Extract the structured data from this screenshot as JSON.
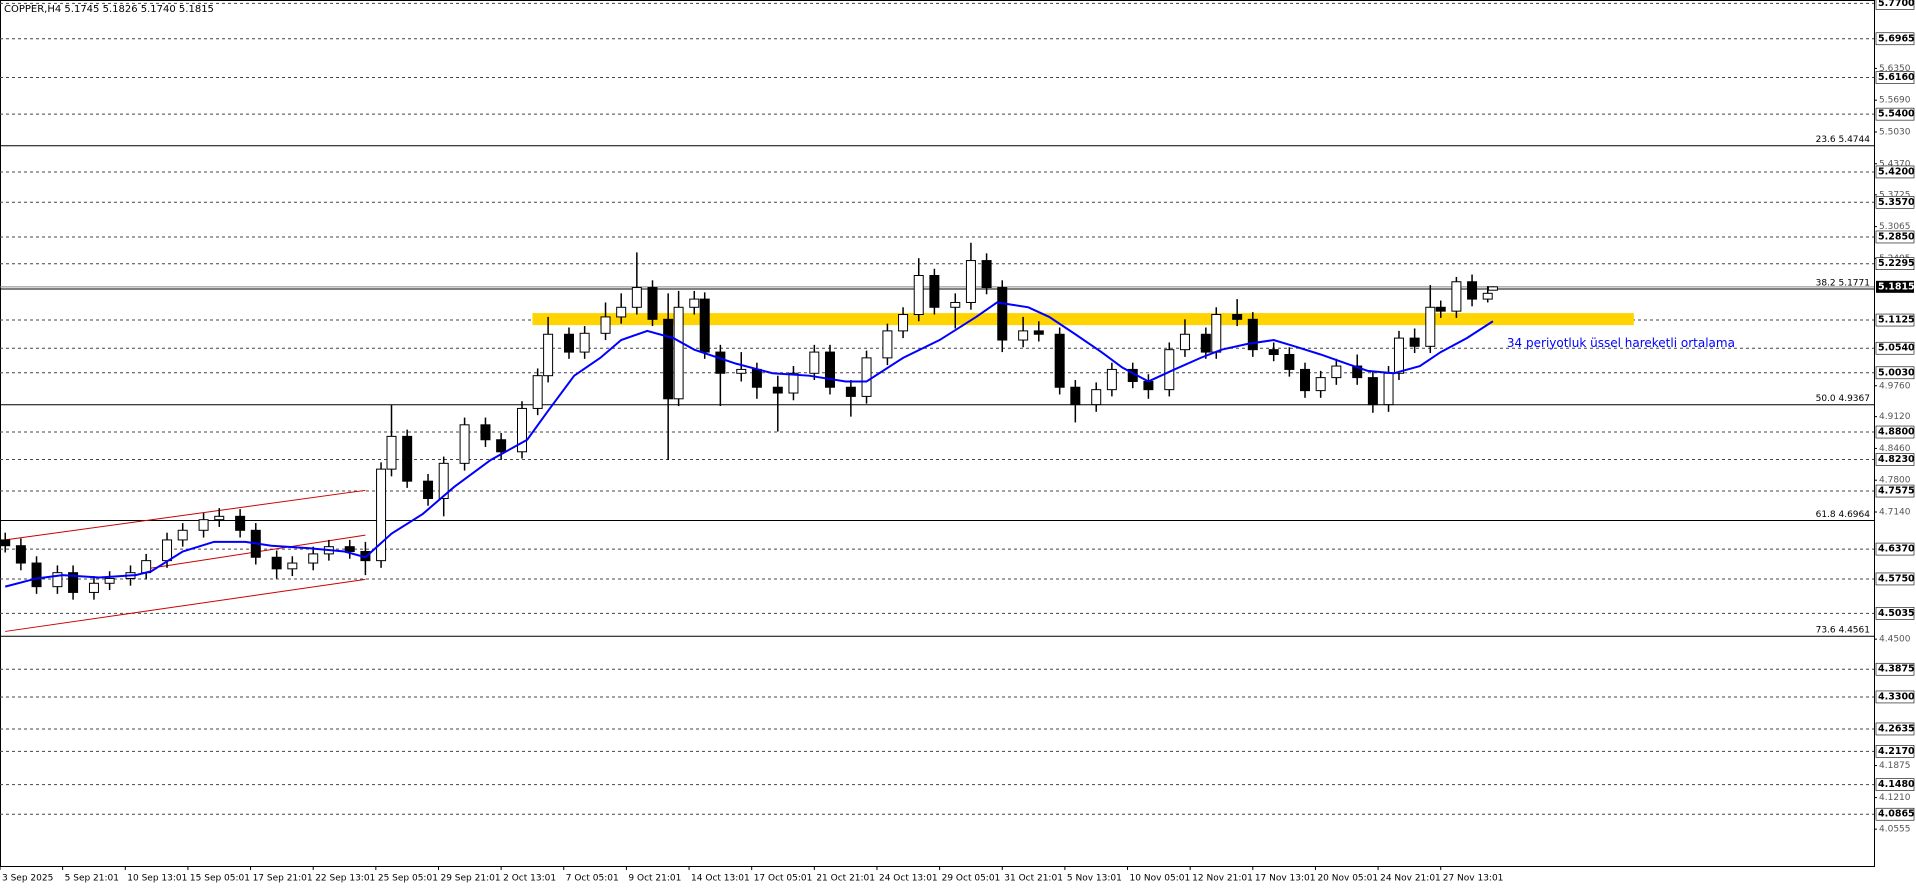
{
  "chart_data": {
    "type": "candlestick",
    "title": "COPPER,H4  5.1745 5.1826 5.1740 5.1815",
    "xlim": [
      0,
      359
    ],
    "ylim": [
      3.979,
      5.777
    ],
    "grid": true,
    "xticks": [
      {
        "value": 0,
        "label": "3 Sep 2025"
      },
      {
        "value": 12,
        "label": "5 Sep 21:01"
      },
      {
        "value": 24,
        "label": "10 Sep 13:01"
      },
      {
        "value": 36,
        "label": "15 Sep 05:01"
      },
      {
        "value": 48,
        "label": "17 Sep 21:01"
      },
      {
        "value": 60,
        "label": "22 Sep 13:01"
      },
      {
        "value": 72,
        "label": "25 Sep 05:01"
      },
      {
        "value": 84,
        "label": "29 Sep 21:01"
      },
      {
        "value": 96,
        "label": "2 Oct 13:01"
      },
      {
        "value": 108,
        "label": "7 Oct 05:01"
      },
      {
        "value": 120,
        "label": "9 Oct 21:01"
      },
      {
        "value": 132,
        "label": "14 Oct 13:01"
      },
      {
        "value": 144,
        "label": "17 Oct 05:01"
      },
      {
        "value": 156,
        "label": "21 Oct 21:01"
      },
      {
        "value": 168,
        "label": "24 Oct 13:01"
      },
      {
        "value": 180,
        "label": "29 Oct 05:01"
      },
      {
        "value": 192,
        "label": "31 Oct 21:01"
      },
      {
        "value": 204,
        "label": "5 Nov 13:01"
      },
      {
        "value": 216,
        "label": "10 Nov 05:01"
      },
      {
        "value": 228,
        "label": "12 Nov 21:01"
      },
      {
        "value": 240,
        "label": "17 Nov 13:01"
      },
      {
        "value": 252,
        "label": "20 Nov 05:01"
      },
      {
        "value": 264,
        "label": "24 Nov 21:01"
      },
      {
        "value": 276,
        "label": "27 Nov 13:01"
      }
    ],
    "yticks": [
      {
        "value": 5.635,
        "label": "5.6350"
      },
      {
        "value": 5.569,
        "label": "5.5690"
      },
      {
        "value": 5.503,
        "label": "5.5030"
      },
      {
        "value": 5.437,
        "label": "5.4370"
      },
      {
        "value": 5.3725,
        "label": "5.3725"
      },
      {
        "value": 5.3065,
        "label": "5.3065"
      },
      {
        "value": 5.2405,
        "label": "5.2405"
      },
      {
        "value": 4.976,
        "label": "4.9760"
      },
      {
        "value": 4.912,
        "label": "4.9120"
      },
      {
        "value": 4.846,
        "label": "4.8460"
      },
      {
        "value": 4.78,
        "label": "4.7800"
      },
      {
        "value": 4.714,
        "label": "4.7140"
      },
      {
        "value": 4.45,
        "label": "4.4500"
      },
      {
        "value": 4.1875,
        "label": "4.1875"
      },
      {
        "value": 4.121,
        "label": "4.1210"
      },
      {
        "value": 4.0555,
        "label": "4.0555"
      }
    ],
    "levels": [
      {
        "value": 5.77,
        "label": "5.7700"
      },
      {
        "value": 5.6965,
        "label": "5.6965"
      },
      {
        "value": 5.616,
        "label": "5.6160"
      },
      {
        "value": 5.54,
        "label": "5.5400"
      },
      {
        "value": 5.42,
        "label": "5.4200"
      },
      {
        "value": 5.357,
        "label": "5.3570"
      },
      {
        "value": 5.285,
        "label": "5.2850"
      },
      {
        "value": 5.2295,
        "label": "5.2295"
      },
      {
        "value": 5.1125,
        "label": "5.1125"
      },
      {
        "value": 5.054,
        "label": "5.0540"
      },
      {
        "value": 5.003,
        "label": "5.0030"
      },
      {
        "value": 4.88,
        "label": "4.8800"
      },
      {
        "value": 4.823,
        "label": "4.8230"
      },
      {
        "value": 4.7575,
        "label": "4.7575"
      },
      {
        "value": 4.637,
        "label": "4.6370"
      },
      {
        "value": 4.575,
        "label": "4.5750"
      },
      {
        "value": 4.5035,
        "label": "4.5035"
      },
      {
        "value": 4.3875,
        "label": "4.3875"
      },
      {
        "value": 4.33,
        "label": "4.3300"
      },
      {
        "value": 4.2635,
        "label": "4.2635"
      },
      {
        "value": 4.217,
        "label": "4.2170"
      },
      {
        "value": 4.148,
        "label": "4.1480"
      },
      {
        "value": 4.0865,
        "label": "4.0865"
      }
    ],
    "price": {
      "value": 5.1815,
      "label": "5.1815"
    },
    "fib": [
      {
        "value": 5.4744,
        "label": "23.6 5.4744"
      },
      {
        "value": 5.1771,
        "label": "38.2 5.1771"
      },
      {
        "value": 4.9367,
        "label": "50.0 4.9367"
      },
      {
        "value": 4.6964,
        "label": "61.8 4.6964"
      },
      {
        "value": 4.4561,
        "label": "73.6 4.4561"
      }
    ],
    "zone": {
      "color": "#ffd400",
      "x": [
        102,
        313
      ],
      "values": [
        5.102,
        5.127
      ]
    },
    "trendlines": [
      {
        "color": "#cc0000",
        "x": [
          1,
          70
        ],
        "values": [
          4.656,
          4.759
        ]
      },
      {
        "color": "#cc0000",
        "x": [
          28,
          70
        ],
        "values": [
          4.596,
          4.666
        ]
      },
      {
        "color": "#cc0000",
        "x": [
          1,
          70
        ],
        "values": [
          4.466,
          4.574
        ]
      }
    ],
    "candles": {
      "x": [
        1,
        4,
        7,
        11,
        14,
        18,
        21,
        25,
        28,
        32,
        35,
        39,
        42,
        46,
        49,
        53,
        56,
        60,
        63,
        67,
        70,
        73,
        75,
        78,
        82,
        85,
        89,
        93,
        96,
        100,
        103,
        105,
        109,
        112,
        116,
        119,
        122,
        125,
        128,
        130,
        133,
        135,
        138,
        142,
        145,
        149,
        152,
        156,
        159,
        163,
        166,
        170,
        173,
        176,
        179,
        183,
        186,
        189,
        192,
        196,
        199,
        203,
        206,
        210,
        213,
        217,
        220,
        224,
        227,
        231,
        233,
        237,
        240,
        244,
        247,
        250,
        253,
        256,
        260,
        263,
        266,
        268,
        271,
        274,
        276,
        279,
        282,
        285,
        286
      ],
      "open": [
        4.656,
        4.644,
        4.608,
        4.559,
        4.588,
        4.547,
        4.566,
        4.576,
        4.588,
        4.613,
        4.656,
        4.676,
        4.698,
        4.705,
        4.676,
        4.62,
        4.596,
        4.608,
        4.627,
        4.642,
        4.632,
        4.613,
        4.803,
        4.871,
        4.778,
        4.742,
        4.815,
        4.895,
        4.864,
        4.839,
        4.929,
        4.997,
        5.083,
        5.046,
        5.085,
        5.119,
        5.139,
        5.18,
        5.114,
        4.949,
        5.139,
        5.156,
        5.046,
        5.002,
        5.01,
        4.973,
        4.961,
        5.002,
        5.046,
        4.973,
        4.954,
        5.034,
        5.09,
        5.124,
        5.205,
        5.139,
        5.149,
        5.236,
        5.18,
        5.071,
        5.09,
        5.083,
        4.973,
        4.937,
        4.968,
        5.01,
        4.985,
        4.968,
        5.051,
        5.083,
        5.046,
        5.124,
        5.114,
        5.051,
        5.041,
        5.01,
        4.966,
        4.993,
        5.017,
        4.993,
        4.937,
        5.002,
        5.075,
        5.058,
        5.139,
        5.131,
        5.192,
        5.156,
        5.1745
      ],
      "high": [
        4.671,
        4.659,
        4.622,
        4.603,
        4.603,
        4.581,
        4.591,
        4.603,
        4.627,
        4.671,
        4.691,
        4.712,
        4.722,
        4.72,
        4.691,
        4.634,
        4.622,
        4.642,
        4.656,
        4.656,
        4.652,
        4.817,
        4.937,
        4.885,
        4.793,
        4.829,
        4.91,
        4.91,
        4.878,
        4.944,
        5.012,
        5.119,
        5.097,
        5.1,
        5.149,
        5.168,
        5.253,
        5.195,
        5.168,
        5.173,
        5.173,
        5.17,
        5.061,
        5.046,
        5.024,
        4.997,
        5.017,
        5.061,
        5.061,
        4.988,
        5.049,
        5.105,
        5.139,
        5.241,
        5.219,
        5.168,
        5.273,
        5.251,
        5.195,
        5.119,
        5.11,
        5.097,
        4.988,
        4.983,
        5.024,
        5.024,
        5.0,
        5.066,
        5.114,
        5.097,
        5.139,
        5.156,
        5.129,
        5.066,
        5.056,
        5.024,
        5.007,
        5.032,
        5.041,
        5.007,
        5.017,
        5.09,
        5.095,
        5.185,
        5.153,
        5.202,
        5.207,
        5.183,
        5.1826
      ],
      "low": [
        4.63,
        4.593,
        4.544,
        4.544,
        4.532,
        4.532,
        4.552,
        4.561,
        4.574,
        4.598,
        4.642,
        4.661,
        4.683,
        4.661,
        4.605,
        4.576,
        4.581,
        4.593,
        4.613,
        4.617,
        4.583,
        4.598,
        4.788,
        4.764,
        4.727,
        4.705,
        4.8,
        4.849,
        4.822,
        4.825,
        4.915,
        4.983,
        5.032,
        5.032,
        5.071,
        5.105,
        5.124,
        5.1,
        4.822,
        4.934,
        5.124,
        5.032,
        4.934,
        4.985,
        4.949,
        4.881,
        4.946,
        4.988,
        4.958,
        4.912,
        4.939,
        5.019,
        5.075,
        5.11,
        5.124,
        5.095,
        5.134,
        5.166,
        5.046,
        5.056,
        5.068,
        4.958,
        4.9,
        4.922,
        4.954,
        4.971,
        4.949,
        4.954,
        5.036,
        5.032,
        5.032,
        5.1,
        5.036,
        5.027,
        4.995,
        4.951,
        4.951,
        4.978,
        4.978,
        4.92,
        4.922,
        4.988,
        5.044,
        5.044,
        5.117,
        5.117,
        5.141,
        5.149,
        5.174
      ],
      "close": [
        4.644,
        4.608,
        4.559,
        4.588,
        4.547,
        4.566,
        4.576,
        4.588,
        4.613,
        4.656,
        4.676,
        4.698,
        4.705,
        4.676,
        4.62,
        4.596,
        4.608,
        4.627,
        4.642,
        4.632,
        4.613,
        4.803,
        4.871,
        4.778,
        4.742,
        4.815,
        4.895,
        4.864,
        4.839,
        4.929,
        4.997,
        5.083,
        5.046,
        5.085,
        5.119,
        5.139,
        5.18,
        5.114,
        4.949,
        5.139,
        5.156,
        5.046,
        5.002,
        5.01,
        4.973,
        4.961,
        5.002,
        5.046,
        4.973,
        4.954,
        5.034,
        5.09,
        5.124,
        5.205,
        5.139,
        5.149,
        5.236,
        5.18,
        5.071,
        5.09,
        5.083,
        4.973,
        4.937,
        4.968,
        5.01,
        4.985,
        4.968,
        5.051,
        5.083,
        5.046,
        5.124,
        5.114,
        5.051,
        5.041,
        5.01,
        4.966,
        4.993,
        5.017,
        4.993,
        4.937,
        5.002,
        5.075,
        5.058,
        5.139,
        5.131,
        5.192,
        5.156,
        5.168,
        5.1815
      ]
    },
    "series": [
      {
        "name": "34 periyotluk üssel hareketli ortalama",
        "color": "#0000ff",
        "x": [
          1,
          7,
          12,
          19,
          26,
          29,
          35,
          41,
          47,
          52,
          59,
          66,
          70,
          75,
          81,
          87,
          94,
          101,
          105,
          110,
          115,
          119,
          124,
          129,
          133,
          141,
          148,
          155,
          162,
          166,
          173,
          180,
          187,
          191,
          197,
          201,
          206,
          211,
          215,
          220,
          225,
          230,
          234,
          239,
          244,
          248,
          253,
          258,
          262,
          267,
          272,
          276,
          281,
          286
        ],
        "values": [
          4.559,
          4.576,
          4.583,
          4.578,
          4.583,
          4.591,
          4.632,
          4.652,
          4.652,
          4.644,
          4.639,
          4.632,
          4.62,
          4.669,
          4.71,
          4.766,
          4.822,
          4.864,
          4.924,
          4.997,
          5.034,
          5.071,
          5.09,
          5.075,
          5.051,
          5.022,
          5.002,
          4.997,
          4.985,
          4.985,
          5.034,
          5.071,
          5.119,
          5.149,
          5.139,
          5.119,
          5.083,
          5.046,
          5.014,
          4.985,
          5.01,
          5.034,
          5.051,
          5.063,
          5.071,
          5.058,
          5.041,
          5.022,
          5.007,
          5.002,
          5.017,
          5.046,
          5.075,
          5.11
        ]
      }
    ]
  }
}
